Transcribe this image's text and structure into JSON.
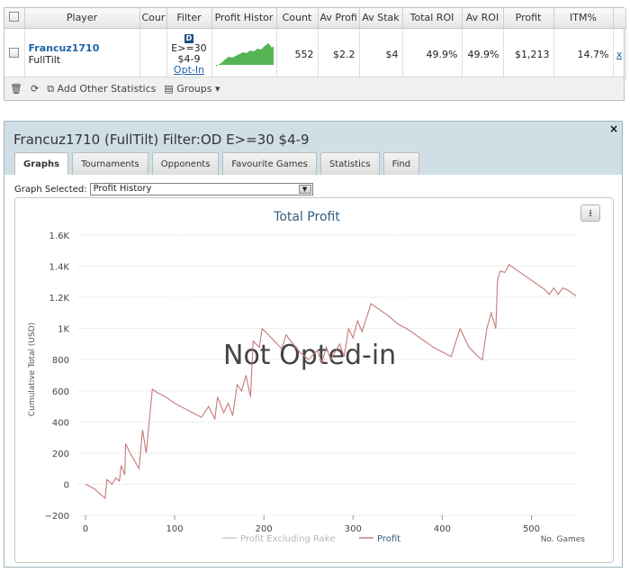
{
  "table": {
    "headers": [
      "Player",
      "Cour",
      "Filter",
      "Profit Histor",
      "Count",
      "Av Profi",
      "Av Stak",
      "Total ROI",
      "Av ROI",
      "Profit",
      "ITM%"
    ],
    "row": {
      "player_name": "Francuz1710",
      "site": "FullTilt",
      "filter_badge": "D",
      "filter_line1": "E>=30",
      "filter_line2": "$4-9",
      "filter_optin": "Opt-In",
      "count": "552",
      "av_profit": "$2.2",
      "av_stake": "$4",
      "total_roi": "49.9%",
      "av_roi": "49.9%",
      "profit": "$1,213",
      "itm": "14.7%",
      "remove": "x"
    }
  },
  "toolbar": {
    "add_stats": "Add Other Statistics",
    "groups": "Groups"
  },
  "panel": {
    "title": "Francuz1710 (FullTilt) Filter:OD E>=30 $4-9",
    "close": "×",
    "tabs": [
      "Graphs",
      "Tournaments",
      "Opponents",
      "Favourite Games",
      "Statistics",
      "Find"
    ],
    "graph_selected_label": "Graph Selected:",
    "graph_selected_value": "Profit History"
  },
  "colors": {
    "profit_line": "#c47a7a",
    "legend_grey": "#cccccc",
    "sparkline": "#55b555"
  },
  "chart_data": {
    "type": "line",
    "title": "Total Profit",
    "ylabel": "Cumulative Total (USD)",
    "xlabel": "No. Games",
    "overlay_text": "Not Opted-in",
    "xlim": [
      0,
      555
    ],
    "ylim": [
      -200,
      1600
    ],
    "x_ticks": [
      0,
      100,
      200,
      300,
      400,
      500
    ],
    "y_ticks": [
      -200,
      0,
      200,
      400,
      600,
      800,
      1000,
      1200,
      1400,
      1600
    ],
    "y_tick_labels": [
      "−200",
      "0",
      "200",
      "400",
      "600",
      "800",
      "1K",
      "1.2K",
      "1.4K",
      "1.6K"
    ],
    "grid": true,
    "legend_position": "bottom",
    "series": [
      {
        "name": "Profit Excluding Rake",
        "visible": false,
        "x": [],
        "y": []
      },
      {
        "name": "Profit",
        "x": [
          0,
          10,
          22,
          24,
          30,
          34,
          38,
          40,
          44,
          45,
          50,
          55,
          60,
          64,
          68,
          75,
          80,
          90,
          100,
          110,
          120,
          130,
          138,
          145,
          148,
          155,
          160,
          165,
          170,
          175,
          180,
          185,
          188,
          195,
          198,
          205,
          210,
          215,
          220,
          225,
          230,
          240,
          250,
          260,
          265,
          270,
          275,
          285,
          290,
          295,
          300,
          305,
          310,
          318,
          320,
          330,
          340,
          350,
          360,
          370,
          380,
          390,
          400,
          410,
          420,
          430,
          440,
          445,
          450,
          455,
          460,
          462,
          465,
          470,
          475,
          480,
          490,
          500,
          510,
          515,
          520,
          525,
          530,
          535,
          540,
          545,
          550
        ],
        "y": [
          0,
          -30,
          -90,
          30,
          0,
          40,
          20,
          120,
          60,
          260,
          200,
          150,
          100,
          350,
          200,
          610,
          590,
          560,
          520,
          490,
          460,
          430,
          500,
          420,
          560,
          460,
          520,
          440,
          640,
          600,
          700,
          560,
          920,
          880,
          1000,
          960,
          930,
          900,
          870,
          960,
          920,
          850,
          800,
          860,
          780,
          880,
          800,
          900,
          820,
          1000,
          940,
          1050,
          980,
          1120,
          1160,
          1120,
          1080,
          1030,
          1000,
          960,
          920,
          880,
          850,
          820,
          1000,
          880,
          820,
          800,
          1000,
          1100,
          1000,
          1310,
          1370,
          1360,
          1410,
          1390,
          1350,
          1310,
          1270,
          1250,
          1220,
          1260,
          1220,
          1260,
          1250,
          1230,
          1210
        ]
      }
    ]
  }
}
